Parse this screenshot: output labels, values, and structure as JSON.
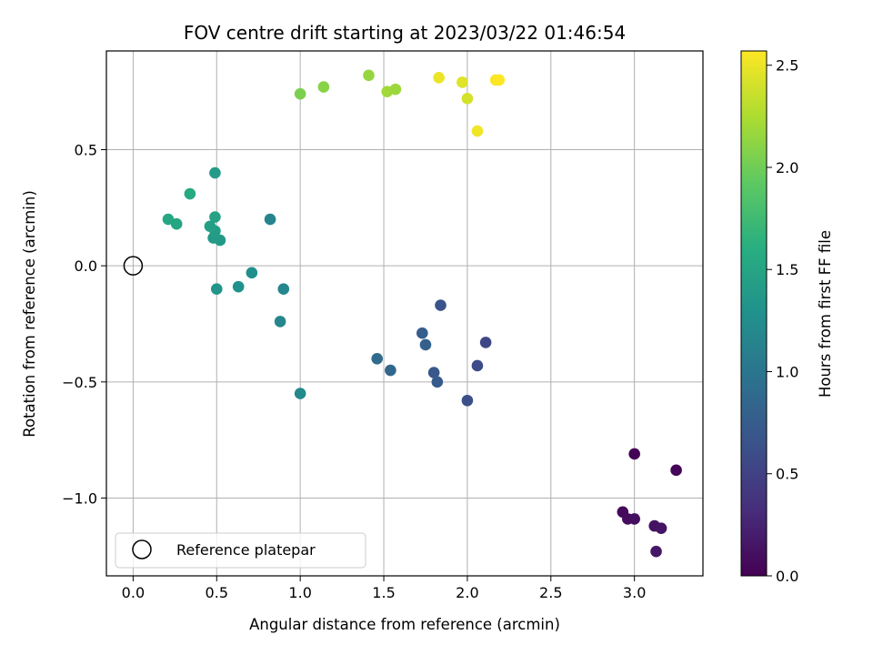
{
  "chart_data": {
    "type": "scatter",
    "title": "FOV centre drift starting at 2023/03/22 01:46:54",
    "xlabel": "Angular distance from reference (arcmin)",
    "ylabel": "Rotation from reference (arcmin)",
    "xlim": [
      -0.16,
      3.41
    ],
    "ylim": [
      -1.335,
      0.925
    ],
    "xticks": [
      0.0,
      0.5,
      1.0,
      1.5,
      2.0,
      2.5,
      3.0
    ],
    "xtick_labels": [
      "0.0",
      "0.5",
      "1.0",
      "1.5",
      "2.0",
      "2.5",
      "3.0"
    ],
    "yticks": [
      0.5,
      0.0,
      -0.5,
      -1.0
    ],
    "ytick_labels": [
      "0.5",
      "0.0",
      "−0.5",
      "−1.0"
    ],
    "grid": true,
    "colormap": "viridis",
    "colorbar": {
      "label": "Hours from first FF file",
      "range": [
        0.0,
        2.57
      ],
      "ticks": [
        0.0,
        0.5,
        1.0,
        1.5,
        2.0,
        2.5
      ],
      "tick_labels": [
        "0.0",
        "0.5",
        "1.0",
        "1.5",
        "2.0",
        "2.5"
      ]
    },
    "legend": {
      "placement": "lower-left",
      "entries": [
        "Reference platepar"
      ]
    },
    "reference": {
      "x": 0.0,
      "y": 0.0
    },
    "points": [
      {
        "x": 3.0,
        "y": -0.81,
        "c": 0.02
      },
      {
        "x": 3.25,
        "y": -0.88,
        "c": 0.04
      },
      {
        "x": 2.93,
        "y": -1.06,
        "c": 0.06
      },
      {
        "x": 2.96,
        "y": -1.09,
        "c": 0.08
      },
      {
        "x": 3.0,
        "y": -1.09,
        "c": 0.1
      },
      {
        "x": 3.12,
        "y": -1.12,
        "c": 0.12
      },
      {
        "x": 3.16,
        "y": -1.13,
        "c": 0.14
      },
      {
        "x": 3.13,
        "y": -1.23,
        "c": 0.16
      },
      {
        "x": 2.11,
        "y": -0.33,
        "c": 0.55
      },
      {
        "x": 2.06,
        "y": -0.43,
        "c": 0.58
      },
      {
        "x": 2.0,
        "y": -0.58,
        "c": 0.62
      },
      {
        "x": 1.84,
        "y": -0.17,
        "c": 0.65
      },
      {
        "x": 1.8,
        "y": -0.46,
        "c": 0.7
      },
      {
        "x": 1.82,
        "y": -0.5,
        "c": 0.72
      },
      {
        "x": 1.73,
        "y": -0.29,
        "c": 0.76
      },
      {
        "x": 1.75,
        "y": -0.34,
        "c": 0.78
      },
      {
        "x": 1.54,
        "y": -0.45,
        "c": 0.85
      },
      {
        "x": 1.46,
        "y": -0.4,
        "c": 0.88
      },
      {
        "x": 1.0,
        "y": -0.55,
        "c": 1.2
      },
      {
        "x": 0.88,
        "y": -0.24,
        "c": 1.17
      },
      {
        "x": 0.9,
        "y": -0.1,
        "c": 1.18
      },
      {
        "x": 0.71,
        "y": -0.03,
        "c": 1.25
      },
      {
        "x": 0.63,
        "y": -0.09,
        "c": 1.28
      },
      {
        "x": 0.5,
        "y": -0.1,
        "c": 1.33
      },
      {
        "x": 0.82,
        "y": 0.2,
        "c": 1.15
      },
      {
        "x": 0.52,
        "y": 0.11,
        "c": 1.38
      },
      {
        "x": 0.48,
        "y": 0.12,
        "c": 1.4
      },
      {
        "x": 0.49,
        "y": 0.15,
        "c": 1.42
      },
      {
        "x": 0.46,
        "y": 0.17,
        "c": 1.44
      },
      {
        "x": 0.49,
        "y": 0.21,
        "c": 1.46
      },
      {
        "x": 0.49,
        "y": 0.4,
        "c": 1.4
      },
      {
        "x": 0.26,
        "y": 0.18,
        "c": 1.5
      },
      {
        "x": 0.21,
        "y": 0.2,
        "c": 1.53
      },
      {
        "x": 0.34,
        "y": 0.31,
        "c": 1.55
      },
      {
        "x": 1.0,
        "y": 0.74,
        "c": 2.05
      },
      {
        "x": 1.14,
        "y": 0.77,
        "c": 2.1
      },
      {
        "x": 1.41,
        "y": 0.82,
        "c": 2.15
      },
      {
        "x": 1.52,
        "y": 0.75,
        "c": 2.2
      },
      {
        "x": 1.57,
        "y": 0.76,
        "c": 2.18
      },
      {
        "x": 1.83,
        "y": 0.81,
        "c": 2.5
      },
      {
        "x": 1.97,
        "y": 0.79,
        "c": 2.45
      },
      {
        "x": 2.0,
        "y": 0.72,
        "c": 2.4
      },
      {
        "x": 2.06,
        "y": 0.58,
        "c": 2.52
      },
      {
        "x": 2.17,
        "y": 0.8,
        "c": 2.55
      },
      {
        "x": 2.19,
        "y": 0.8,
        "c": 2.56
      }
    ]
  }
}
